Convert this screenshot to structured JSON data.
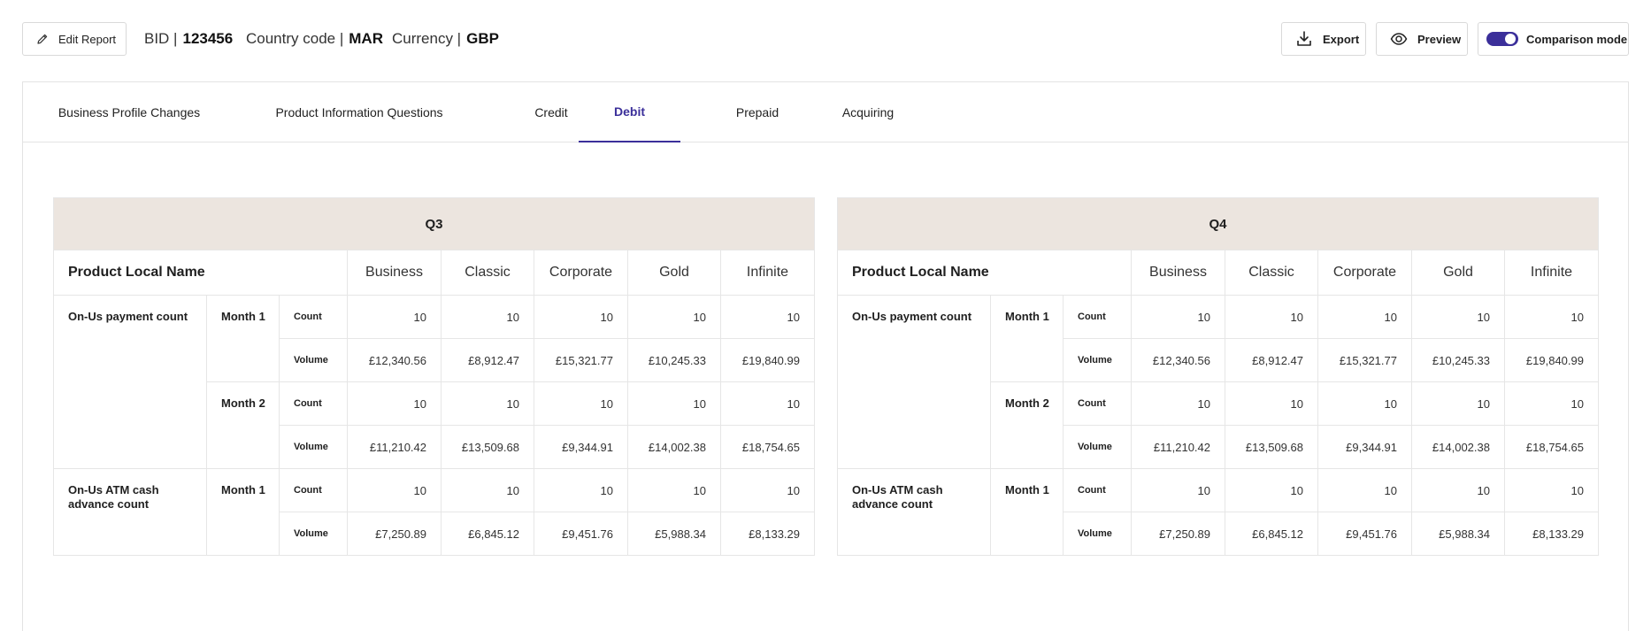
{
  "toolbar": {
    "edit_label": "Edit Report",
    "bid_label": "BID |",
    "bid_value": "123456",
    "country_label": "Country code |",
    "country_value": "MAR",
    "currency_label": "Currency |",
    "currency_value": "GBP",
    "export_label": "Export",
    "preview_label": "Preview",
    "comparison_label": "Comparison mode",
    "comparison_on": true
  },
  "tabs": [
    {
      "label": "Business Profile Changes"
    },
    {
      "label": "Product Information Questions"
    },
    {
      "label": "Credit"
    },
    {
      "label": "Debit"
    },
    {
      "label": "Prepaid"
    },
    {
      "label": "Acquiring"
    }
  ],
  "active_tab": "Debit",
  "accent_color": "#3b2f9a",
  "header_color": "#ece5df",
  "tables": [
    {
      "quarter": "Q3",
      "product_col": "Product Local Name",
      "columns": [
        "Business",
        "Classic",
        "Corporate",
        "Gold",
        "Infinite"
      ],
      "rows": {
        "r1_label": "On-Us payment count",
        "r2_label": "On-Us ATM cash advance count",
        "m1": "Month 1",
        "m2": "Month 2",
        "m3": "Month 1",
        "count": "Count",
        "volume": "Volume",
        "p1_count": [
          "10",
          "10",
          "10",
          "10",
          "10"
        ],
        "p1_volume": [
          "£12,340.56",
          "£8,912.47",
          "£15,321.77",
          "£10,245.33",
          "£19,840.99"
        ],
        "p2_count": [
          "10",
          "10",
          "10",
          "10",
          "10"
        ],
        "p2_volume": [
          "£11,210.42",
          "£13,509.68",
          "£9,344.91",
          "£14,002.38",
          "£18,754.65"
        ],
        "p3_count": [
          "10",
          "10",
          "10",
          "10",
          "10"
        ],
        "p3_volume": [
          "£7,250.89",
          "£6,845.12",
          "£9,451.76",
          "£5,988.34",
          "£8,133.29"
        ]
      }
    },
    {
      "quarter": "Q4",
      "product_col": "Product Local Name",
      "columns": [
        "Business",
        "Classic",
        "Corporate",
        "Gold",
        "Infinite"
      ],
      "rows": {
        "r1_label": "On-Us payment count",
        "r2_label": "On-Us ATM cash advance count",
        "m1": "Month 1",
        "m2": "Month 2",
        "m3": "Month 1",
        "count": "Count",
        "volume": "Volume",
        "p1_count": [
          "10",
          "10",
          "10",
          "10",
          "10"
        ],
        "p1_volume": [
          "£12,340.56",
          "£8,912.47",
          "£15,321.77",
          "£10,245.33",
          "£19,840.99"
        ],
        "p2_count": [
          "10",
          "10",
          "10",
          "10",
          "10"
        ],
        "p2_volume": [
          "£11,210.42",
          "£13,509.68",
          "£9,344.91",
          "£14,002.38",
          "£18,754.65"
        ],
        "p3_count": [
          "10",
          "10",
          "10",
          "10",
          "10"
        ],
        "p3_volume": [
          "£7,250.89",
          "£6,845.12",
          "£9,451.76",
          "£5,988.34",
          "£8,133.29"
        ]
      }
    }
  ]
}
